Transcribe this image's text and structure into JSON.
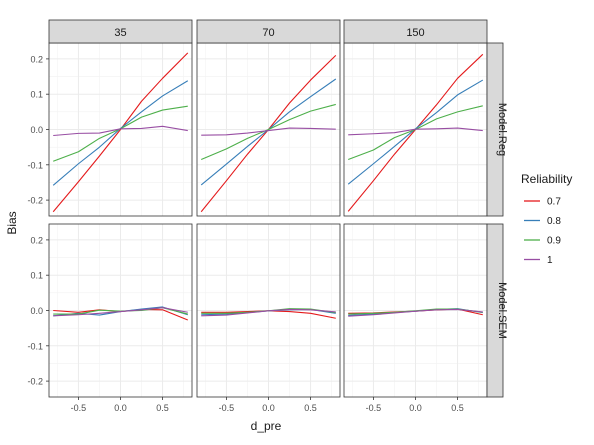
{
  "chart_data": {
    "type": "line",
    "xlabel": "d_pre",
    "ylabel": "Bias",
    "xlim": [
      -0.85,
      0.85
    ],
    "ylim": [
      -0.245,
      0.245
    ],
    "x_ticks": [
      -0.5,
      0.0,
      0.5
    ],
    "x_tick_labels": [
      "-0.5",
      "0.0",
      "0.5"
    ],
    "y_ticks": [
      -0.2,
      -0.1,
      0.0,
      0.1,
      0.2
    ],
    "y_tick_labels": [
      "-0.2",
      "-0.1",
      "0.0",
      "0.1",
      "0.2"
    ],
    "grid": true,
    "legend": {
      "title": "Reliability",
      "placement": "right",
      "entries": [
        {
          "label": "0.7",
          "color": "#e41a1c"
        },
        {
          "label": "0.8",
          "color": "#377eb8"
        },
        {
          "label": "0.9",
          "color": "#4daf4a"
        },
        {
          "label": "1",
          "color": "#984ea3"
        }
      ]
    },
    "facet_columns": [
      "35",
      "70",
      "150"
    ],
    "facet_rows": [
      "Model.Reg",
      "Model.SEM"
    ],
    "x": [
      -0.8,
      -0.5,
      -0.25,
      0.0,
      0.25,
      0.5,
      0.8
    ],
    "panels": [
      {
        "col": "35",
        "row": "Model.Reg",
        "series": [
          {
            "name": "0.7",
            "values": [
              -0.233,
              -0.148,
              -0.075,
              0.0,
              0.08,
              0.145,
              0.217
            ]
          },
          {
            "name": "0.8",
            "values": [
              -0.158,
              -0.097,
              -0.05,
              0.003,
              0.05,
              0.095,
              0.138
            ]
          },
          {
            "name": "0.9",
            "values": [
              -0.09,
              -0.063,
              -0.025,
              0.002,
              0.035,
              0.055,
              0.066
            ]
          },
          {
            "name": "1",
            "values": [
              -0.017,
              -0.011,
              -0.01,
              0.002,
              0.003,
              0.009,
              -0.003
            ]
          }
        ]
      },
      {
        "col": "70",
        "row": "Model.Reg",
        "series": [
          {
            "name": "0.7",
            "values": [
              -0.233,
              -0.145,
              -0.07,
              0.0,
              0.075,
              0.14,
              0.21
            ]
          },
          {
            "name": "0.8",
            "values": [
              -0.157,
              -0.098,
              -0.048,
              0.0,
              0.05,
              0.093,
              0.143
            ]
          },
          {
            "name": "0.9",
            "values": [
              -0.085,
              -0.055,
              -0.025,
              0.0,
              0.028,
              0.052,
              0.071
            ]
          },
          {
            "name": "1",
            "values": [
              -0.016,
              -0.015,
              -0.01,
              -0.003,
              0.004,
              0.003,
              0.001
            ]
          }
        ]
      },
      {
        "col": "150",
        "row": "Model.Reg",
        "series": [
          {
            "name": "0.7",
            "values": [
              -0.232,
              -0.145,
              -0.07,
              0.0,
              0.07,
              0.145,
              0.213
            ]
          },
          {
            "name": "0.8",
            "values": [
              -0.155,
              -0.097,
              -0.048,
              0.002,
              0.048,
              0.098,
              0.14
            ]
          },
          {
            "name": "0.9",
            "values": [
              -0.085,
              -0.058,
              -0.023,
              0.0,
              0.03,
              0.05,
              0.067
            ]
          },
          {
            "name": "1",
            "values": [
              -0.015,
              -0.012,
              -0.009,
              0.001,
              0.002,
              0.004,
              -0.003
            ]
          }
        ]
      },
      {
        "col": "35",
        "row": "Model.SEM",
        "series": [
          {
            "name": "0.7",
            "values": [
              0.0,
              -0.005,
              0.002,
              -0.003,
              0.003,
              0.002,
              -0.027
            ]
          },
          {
            "name": "0.8",
            "values": [
              -0.015,
              -0.008,
              -0.013,
              -0.003,
              0.004,
              0.01,
              -0.012
            ]
          },
          {
            "name": "0.9",
            "values": [
              -0.01,
              -0.01,
              0.001,
              -0.002,
              0.0,
              0.008,
              -0.01
            ]
          },
          {
            "name": "1",
            "values": [
              -0.015,
              -0.012,
              -0.008,
              -0.003,
              0.002,
              0.008,
              -0.005
            ]
          }
        ]
      },
      {
        "col": "70",
        "row": "Model.SEM",
        "series": [
          {
            "name": "0.7",
            "values": [
              -0.005,
              -0.005,
              -0.003,
              -0.001,
              -0.003,
              -0.008,
              -0.022
            ]
          },
          {
            "name": "0.8",
            "values": [
              -0.012,
              -0.01,
              -0.006,
              -0.001,
              0.002,
              0.003,
              -0.008
            ]
          },
          {
            "name": "0.9",
            "values": [
              -0.008,
              -0.008,
              -0.005,
              -0.001,
              0.005,
              0.004,
              -0.006
            ]
          },
          {
            "name": "1",
            "values": [
              -0.015,
              -0.013,
              -0.007,
              -0.001,
              0.003,
              0.002,
              -0.004
            ]
          }
        ]
      },
      {
        "col": "150",
        "row": "Model.SEM",
        "series": [
          {
            "name": "0.7",
            "values": [
              -0.008,
              -0.007,
              -0.004,
              -0.002,
              0.002,
              0.004,
              -0.012
            ]
          },
          {
            "name": "0.8",
            "values": [
              -0.014,
              -0.01,
              -0.006,
              -0.002,
              0.003,
              0.005,
              -0.006
            ]
          },
          {
            "name": "0.9",
            "values": [
              -0.01,
              -0.008,
              -0.005,
              -0.001,
              0.004,
              0.004,
              -0.005
            ]
          },
          {
            "name": "1",
            "values": [
              -0.016,
              -0.012,
              -0.007,
              -0.002,
              0.002,
              0.003,
              -0.004
            ]
          }
        ]
      }
    ]
  }
}
